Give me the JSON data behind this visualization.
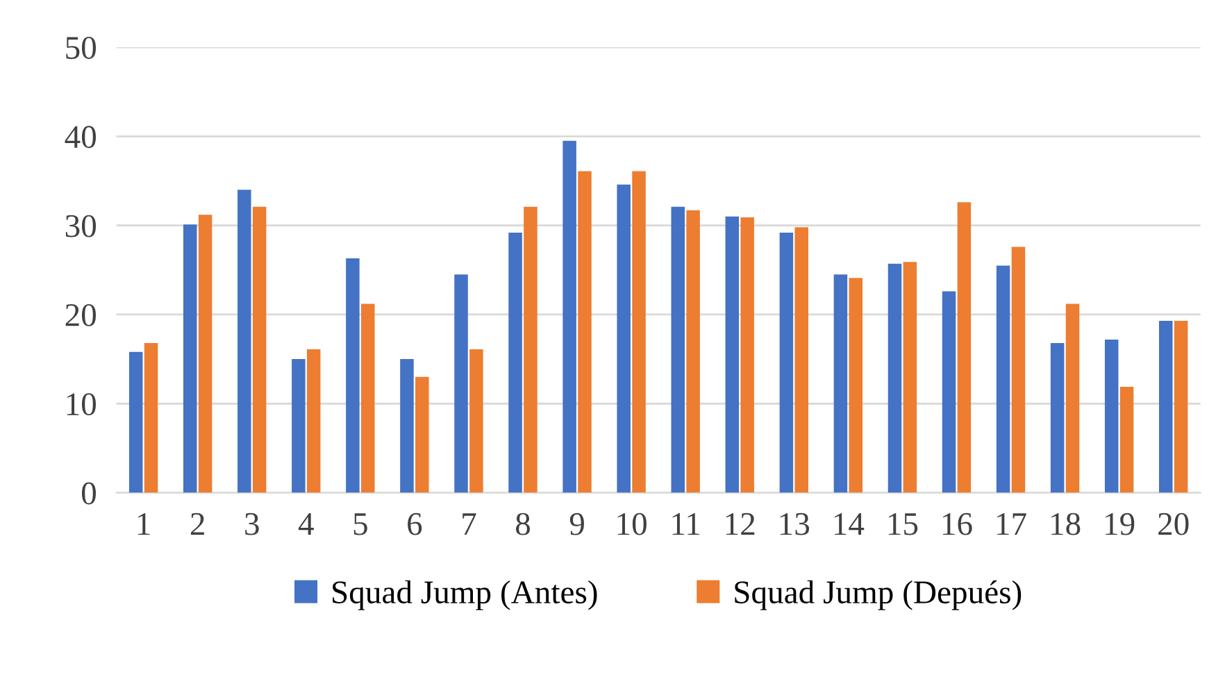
{
  "chart_data": {
    "type": "bar",
    "categories": [
      "1",
      "2",
      "3",
      "4",
      "5",
      "6",
      "7",
      "8",
      "9",
      "10",
      "11",
      "12",
      "13",
      "14",
      "15",
      "16",
      "17",
      "18",
      "19",
      "20"
    ],
    "series": [
      {
        "name": "Squad Jump (Antes)",
        "color": "#4472c4",
        "values": [
          15.8,
          30.1,
          34.0,
          15.0,
          26.3,
          15.0,
          24.5,
          29.2,
          39.5,
          34.6,
          32.1,
          31.0,
          29.2,
          24.5,
          25.7,
          22.6,
          25.5,
          16.8,
          17.2,
          19.3
        ]
      },
      {
        "name": "Squad Jump (Depués)",
        "color": "#ed7d31",
        "values": [
          16.8,
          31.2,
          32.1,
          16.1,
          21.2,
          13.0,
          16.1,
          32.1,
          36.1,
          36.1,
          31.7,
          30.9,
          29.8,
          24.1,
          25.9,
          32.6,
          27.6,
          21.2,
          11.9,
          19.3
        ]
      }
    ],
    "ylim": [
      0,
      50
    ],
    "yticks": [
      0,
      10,
      20,
      30,
      40,
      50
    ],
    "grid": "y",
    "legend": "bottom"
  }
}
